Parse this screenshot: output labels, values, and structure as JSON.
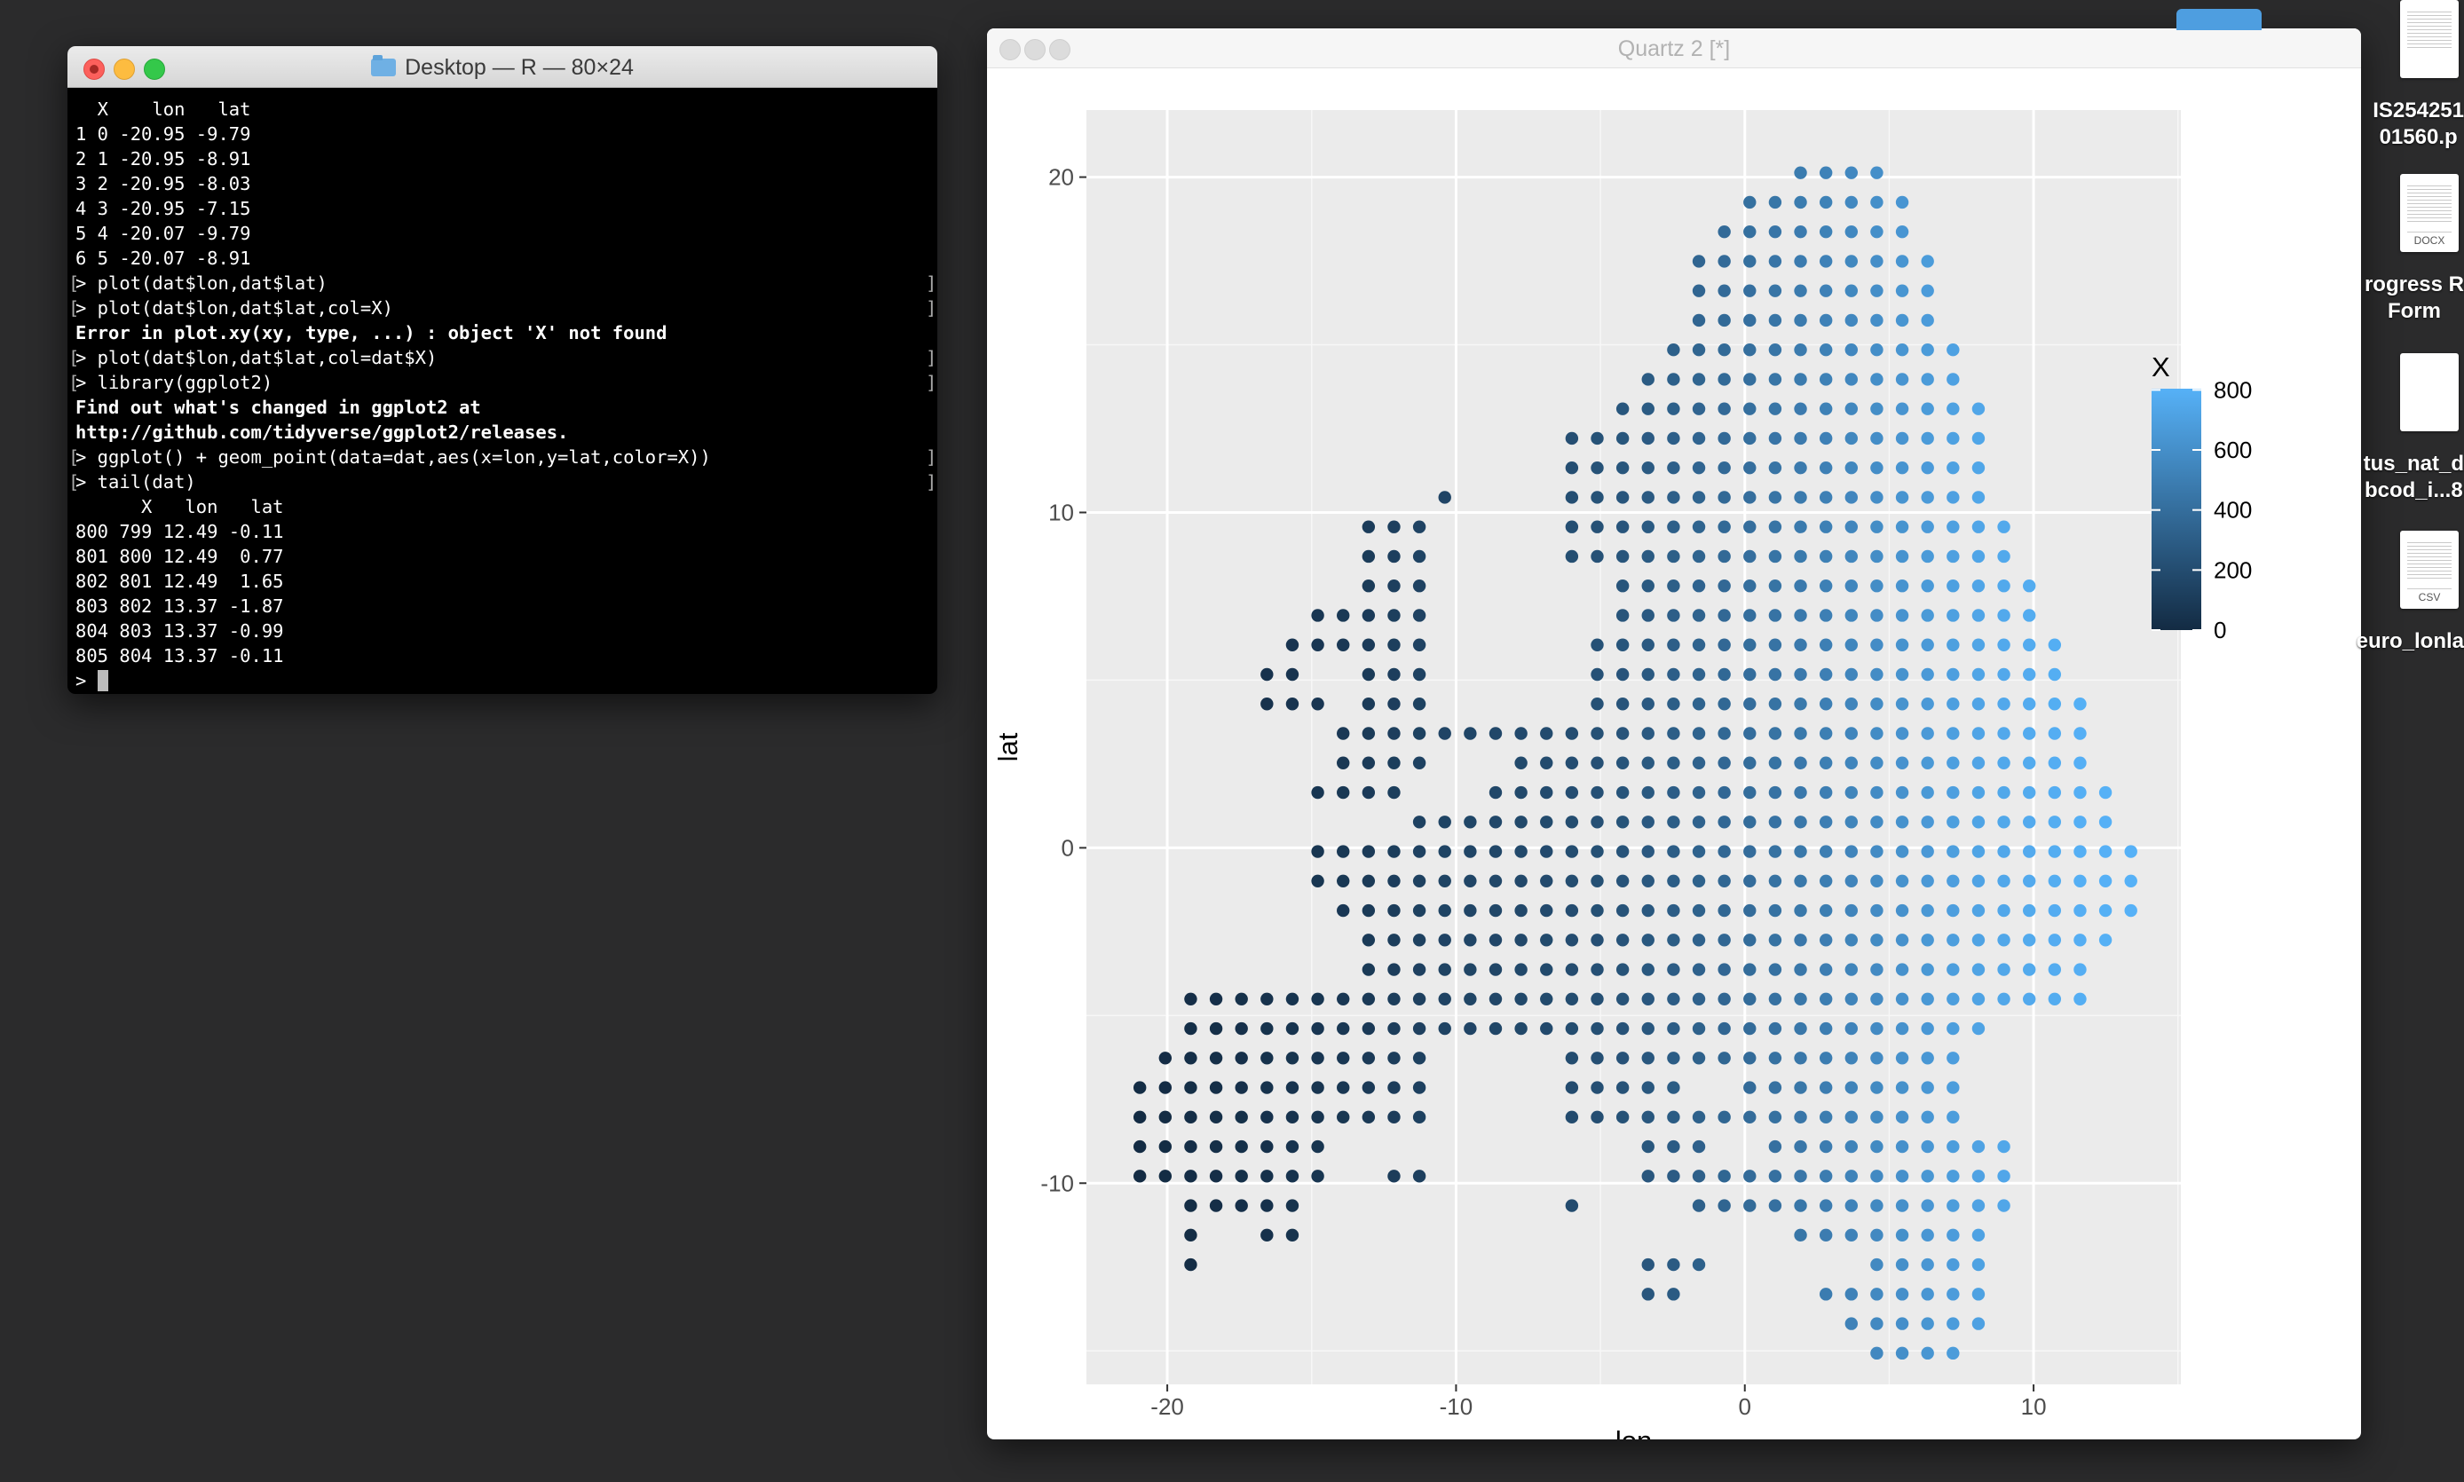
{
  "terminal": {
    "title": "Desktop — R — 80×24",
    "lines": [
      {
        "text": "  X    lon   lat",
        "style": "normal"
      },
      {
        "text": "1 0 -20.95 -9.79",
        "style": "normal"
      },
      {
        "text": "2 1 -20.95 -8.91",
        "style": "normal"
      },
      {
        "text": "3 2 -20.95 -8.03",
        "style": "normal"
      },
      {
        "text": "4 3 -20.95 -7.15",
        "style": "normal"
      },
      {
        "text": "5 4 -20.07 -9.79",
        "style": "normal"
      },
      {
        "text": "6 5 -20.07 -8.91",
        "style": "normal"
      },
      {
        "text": "> plot(dat$lon,dat$lat)",
        "style": "prompt"
      },
      {
        "text": "> plot(dat$lon,dat$lat,col=X)",
        "style": "prompt"
      },
      {
        "text": "Error in plot.xy(xy, type, ...) : object 'X' not found",
        "style": "bold"
      },
      {
        "text": "> plot(dat$lon,dat$lat,col=dat$X)",
        "style": "prompt"
      },
      {
        "text": "> library(ggplot2)",
        "style": "prompt"
      },
      {
        "text": "Find out what's changed in ggplot2 at",
        "style": "bold"
      },
      {
        "text": "http://github.com/tidyverse/ggplot2/releases.",
        "style": "bold"
      },
      {
        "text": "> ggplot() + geom_point(data=dat,aes(x=lon,y=lat,color=X))",
        "style": "prompt"
      },
      {
        "text": "> tail(dat)",
        "style": "prompt"
      },
      {
        "text": "      X   lon   lat",
        "style": "normal"
      },
      {
        "text": "800 799 12.49 -0.11",
        "style": "normal"
      },
      {
        "text": "801 800 12.49  0.77",
        "style": "normal"
      },
      {
        "text": "802 801 12.49  1.65",
        "style": "normal"
      },
      {
        "text": "803 802 13.37 -1.87",
        "style": "normal"
      },
      {
        "text": "804 803 13.37 -0.99",
        "style": "normal"
      },
      {
        "text": "805 804 13.37 -0.11",
        "style": "normal"
      }
    ],
    "prompt_char": ">"
  },
  "quartz": {
    "title": "Quartz 2 [*]"
  },
  "desktop": {
    "items": [
      {
        "label_lines": [
          "IS254251",
          "01560.p"
        ],
        "icon": "pdf-document-icon"
      },
      {
        "label_lines": [
          "rogress R",
          "Form"
        ],
        "icon": "docx-document-icon",
        "tag": "DOCX"
      },
      {
        "label_lines": [
          "tus_nat_d",
          "bcod_i...8"
        ],
        "icon": "blank-document-icon"
      },
      {
        "label_lines": [
          "euro_lonla"
        ],
        "icon": "csv-document-icon",
        "tag": "CSV"
      }
    ]
  },
  "chart_data": {
    "type": "scatter",
    "xlabel": "lon",
    "ylabel": "lat",
    "xlim": [
      -22.8,
      15.1
    ],
    "ylim": [
      -16.0,
      22.0
    ],
    "x_ticks": [
      -20,
      -10,
      0,
      10
    ],
    "y_ticks": [
      -10,
      0,
      10,
      20
    ],
    "grid": true,
    "panel_background": "#ebebeb",
    "legend": {
      "title": "X",
      "ticks": [
        0,
        200,
        400,
        600,
        800
      ],
      "low_color": "#132b43",
      "high_color": "#56b1f7",
      "placement": "right"
    },
    "color_range": [
      0,
      804
    ],
    "grid_step": 0.88,
    "x_origin": -20.95,
    "y_origin": -9.79,
    "rows": [
      {
        "lat": 20.13,
        "x_from": 1.93,
        "x_to": 4.57
      },
      {
        "lat": 19.25,
        "x_from": 0.17,
        "x_to": 5.45
      },
      {
        "lat": 18.37,
        "x_from": -0.71,
        "x_to": 5.45
      },
      {
        "lat": 17.49,
        "x_from": -1.59,
        "x_to": 6.33
      },
      {
        "lat": 16.61,
        "x_from": -1.59,
        "x_to": 6.33
      },
      {
        "lat": 15.73,
        "x_from": -1.59,
        "x_to": 6.33
      },
      {
        "lat": 14.85,
        "x_from": -2.47,
        "x_to": 7.21
      },
      {
        "lat": 13.97,
        "x_from": -3.35,
        "x_to": 7.21
      },
      {
        "lat": 13.09,
        "x_from": -4.23,
        "x_to": 8.09
      },
      {
        "lat": 12.21,
        "x_from": -6.0,
        "x_to": 8.09
      },
      {
        "lat": 11.33,
        "x_from": -6.0,
        "x_to": 8.09
      },
      {
        "lat": 10.45,
        "x_from": -10.39,
        "x_to": 8.09
      },
      {
        "lat": 9.57,
        "x_from": -13.03,
        "x_to": 8.97
      },
      {
        "lat": 8.69,
        "x_from": -13.03,
        "x_to": 8.97
      },
      {
        "lat": 7.81,
        "x_from": -13.03,
        "x_to": 9.85
      },
      {
        "lat": 6.93,
        "x_from": -14.79,
        "x_to": 9.85
      },
      {
        "lat": 6.05,
        "x_from": -15.67,
        "x_to": 10.73
      },
      {
        "lat": 5.17,
        "x_from": -16.55,
        "x_to": 10.73
      },
      {
        "lat": 4.29,
        "x_from": -16.55,
        "x_to": 11.61
      },
      {
        "lat": 3.41,
        "x_from": -13.91,
        "x_to": 11.61
      },
      {
        "lat": 2.53,
        "x_from": -13.91,
        "x_to": 11.61
      },
      {
        "lat": 1.65,
        "x_from": -14.79,
        "x_to": 12.49
      },
      {
        "lat": 0.77,
        "x_from": -11.27,
        "x_to": 12.49
      },
      {
        "lat": -0.11,
        "x_from": -14.79,
        "x_to": 13.37
      },
      {
        "lat": -0.99,
        "x_from": -14.79,
        "x_to": 13.37
      },
      {
        "lat": -1.87,
        "x_from": -13.91,
        "x_to": 13.37
      },
      {
        "lat": -2.75,
        "x_from": -13.03,
        "x_to": 12.49
      },
      {
        "lat": -3.63,
        "x_from": -13.03,
        "x_to": 11.61
      },
      {
        "lat": -4.51,
        "x_from": -19.19,
        "x_to": 11.61
      },
      {
        "lat": -5.39,
        "x_from": -19.19,
        "x_to": 8.09
      },
      {
        "lat": -6.27,
        "x_from": -20.07,
        "x_to": 7.21
      },
      {
        "lat": -7.15,
        "x_from": -20.95,
        "x_to": 7.21
      },
      {
        "lat": -8.03,
        "x_from": -20.95,
        "x_to": 7.21
      },
      {
        "lat": -8.91,
        "x_from": -20.95,
        "x_to": 8.97
      },
      {
        "lat": -9.79,
        "x_from": -20.95,
        "x_to": 8.97
      },
      {
        "lat": -10.67,
        "x_from": -19.19,
        "x_to": 8.97
      },
      {
        "lat": -11.55,
        "x_from": -19.19,
        "x_to": 8.09
      },
      {
        "lat": -12.43,
        "x_from": -19.19,
        "x_to": 8.09
      },
      {
        "lat": -13.31,
        "x_from": -3.35,
        "x_to": 8.09
      },
      {
        "lat": -14.19,
        "x_from": 3.69,
        "x_to": 8.09
      },
      {
        "lat": -15.07,
        "x_from": 4.57,
        "x_to": 7.21
      }
    ],
    "gaps": [
      {
        "lat": 6.05,
        "x_from": -11.0,
        "x_to": -5.6
      },
      {
        "lat": 5.17,
        "x_from": -15.2,
        "x_to": -13.5
      },
      {
        "lat": 5.17,
        "x_from": -11.0,
        "x_to": -5.6
      },
      {
        "lat": 4.29,
        "x_from": -14.4,
        "x_to": -13.5
      },
      {
        "lat": 4.29,
        "x_from": -11.0,
        "x_to": -5.6
      },
      {
        "lat": 10.45,
        "x_from": -9.6,
        "x_to": -6.3
      },
      {
        "lat": 9.57,
        "x_from": -10.8,
        "x_to": -6.3
      },
      {
        "lat": 8.69,
        "x_from": -10.8,
        "x_to": -6.3
      },
      {
        "lat": 7.81,
        "x_from": -10.8,
        "x_to": -5.0
      },
      {
        "lat": 6.93,
        "x_from": -10.8,
        "x_to": -5.0
      },
      {
        "lat": 2.53,
        "x_from": -10.8,
        "x_to": -8.2
      },
      {
        "lat": 1.65,
        "x_from": -12.0,
        "x_to": -9.0
      },
      {
        "lat": -6.27,
        "x_from": -11.0,
        "x_to": -6.5
      },
      {
        "lat": -7.15,
        "x_from": -11.0,
        "x_to": -6.5
      },
      {
        "lat": -8.03,
        "x_from": -11.0,
        "x_to": -6.5
      },
      {
        "lat": -8.91,
        "x_from": -14.3,
        "x_to": -6.5
      },
      {
        "lat": -9.79,
        "x_from": -14.3,
        "x_to": -12.2
      },
      {
        "lat": -9.79,
        "x_from": -10.9,
        "x_to": -6.5
      },
      {
        "lat": -10.67,
        "x_from": -14.8,
        "x_to": -6.5
      },
      {
        "lat": -11.55,
        "x_from": -18.5,
        "x_to": -17.0
      },
      {
        "lat": -11.55,
        "x_from": -15.5,
        "x_to": 1.5
      },
      {
        "lat": -12.43,
        "x_from": -18.5,
        "x_to": -3.8
      },
      {
        "lat": -12.43,
        "x_from": -1.2,
        "x_to": 4.0
      },
      {
        "lat": -13.31,
        "x_from": -1.8,
        "x_to": 2.6
      },
      {
        "lat": -10.67,
        "x_from": -5.5,
        "x_to": -2.0
      },
      {
        "lat": -9.79,
        "x_from": -6.0,
        "x_to": -4.0
      },
      {
        "lat": -8.91,
        "x_from": -6.0,
        "x_to": -4.0
      },
      {
        "lat": -8.91,
        "x_from": -1.2,
        "x_to": 0.9
      },
      {
        "lat": -7.15,
        "x_from": -2.0,
        "x_to": 0.0
      }
    ]
  }
}
